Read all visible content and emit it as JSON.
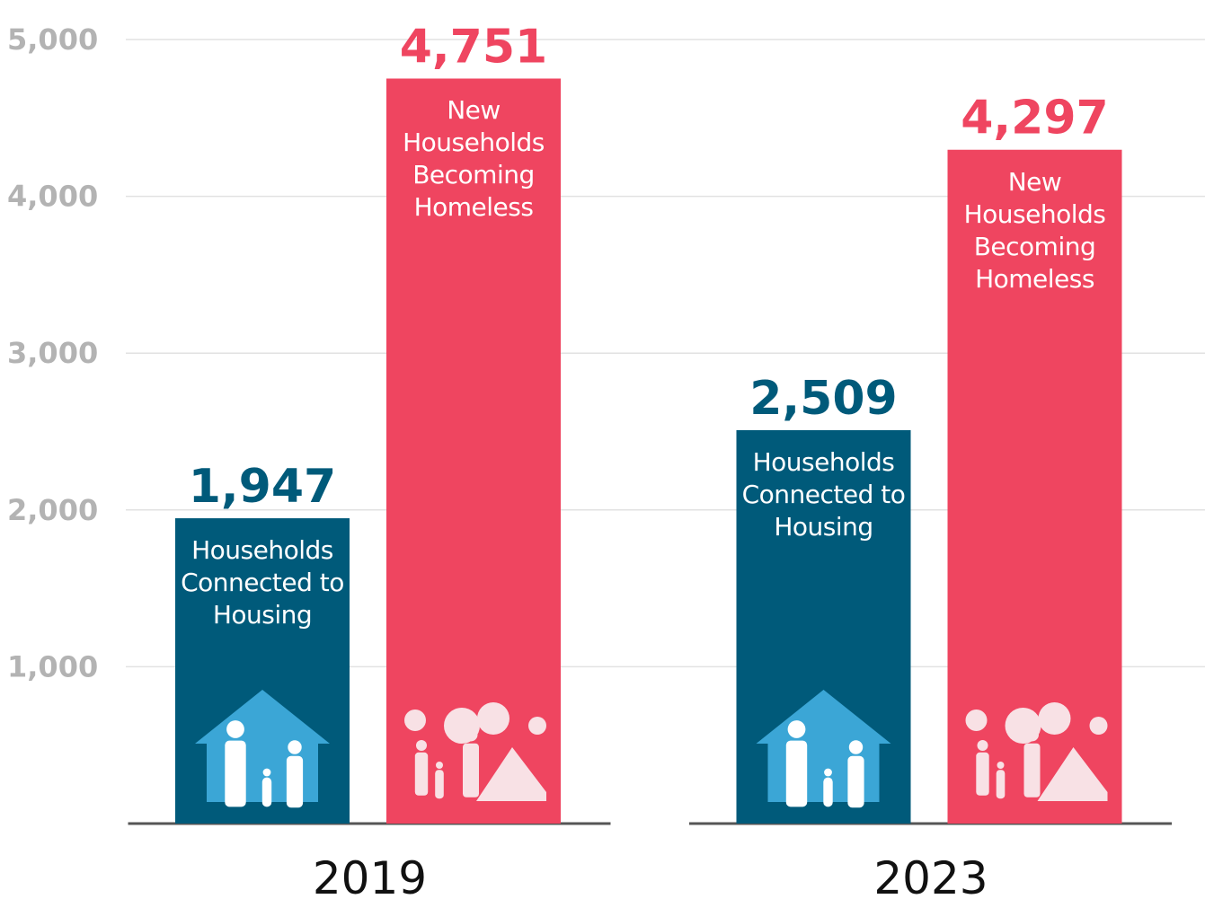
{
  "chart_data": {
    "type": "bar",
    "categories": [
      "2019",
      "2023"
    ],
    "series": [
      {
        "name": "Households Connected to Housing",
        "color": "#005a7a",
        "values": [
          1947,
          2509
        ],
        "value_labels": [
          "1,947",
          "2,509"
        ]
      },
      {
        "name": "New Households Becoming Homeless",
        "color": "#ef4560",
        "values": [
          4751,
          4297
        ],
        "value_labels": [
          "4,751",
          "4,297"
        ]
      }
    ],
    "ylim": [
      0,
      5000
    ],
    "yticks": [
      {
        "value": 1000,
        "label": "1,000"
      },
      {
        "value": 2000,
        "label": "2,000"
      },
      {
        "value": 3000,
        "label": "3,000"
      },
      {
        "value": 4000,
        "label": "4,000"
      },
      {
        "value": 5000,
        "label": "5,000"
      }
    ],
    "grid": true
  }
}
